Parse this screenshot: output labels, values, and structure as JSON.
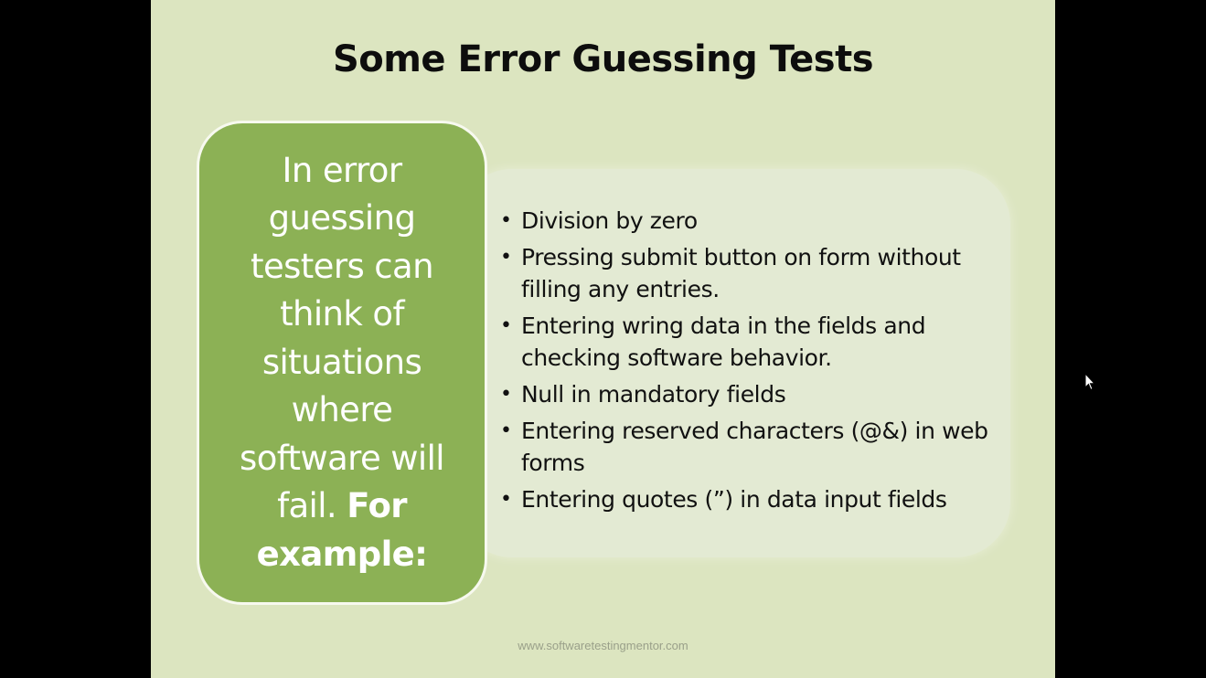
{
  "slide": {
    "title": "Some Error Guessing Tests",
    "intro": {
      "text": "In error guessing testers can think of situations where software will fail.",
      "emphasis": "For example:"
    },
    "bullets": [
      "Division by zero",
      "Pressing submit button on form without filling any entries.",
      "Entering wring data in the fields and checking software behavior.",
      "Null in mandatory fields",
      "Entering reserved characters (@&) in web forms",
      "Entering quotes (”) in data input fields"
    ],
    "footer": "www.softwaretestingmentor.com"
  },
  "colors": {
    "background": "#000000",
    "slide": "#dce5c0",
    "panel": "#e3ead3",
    "accent_green": "#8cb155",
    "title_text": "#0d0d0d"
  },
  "icons": {
    "bullet": "bullet-dot-icon",
    "cursor": "mouse-pointer-icon"
  }
}
